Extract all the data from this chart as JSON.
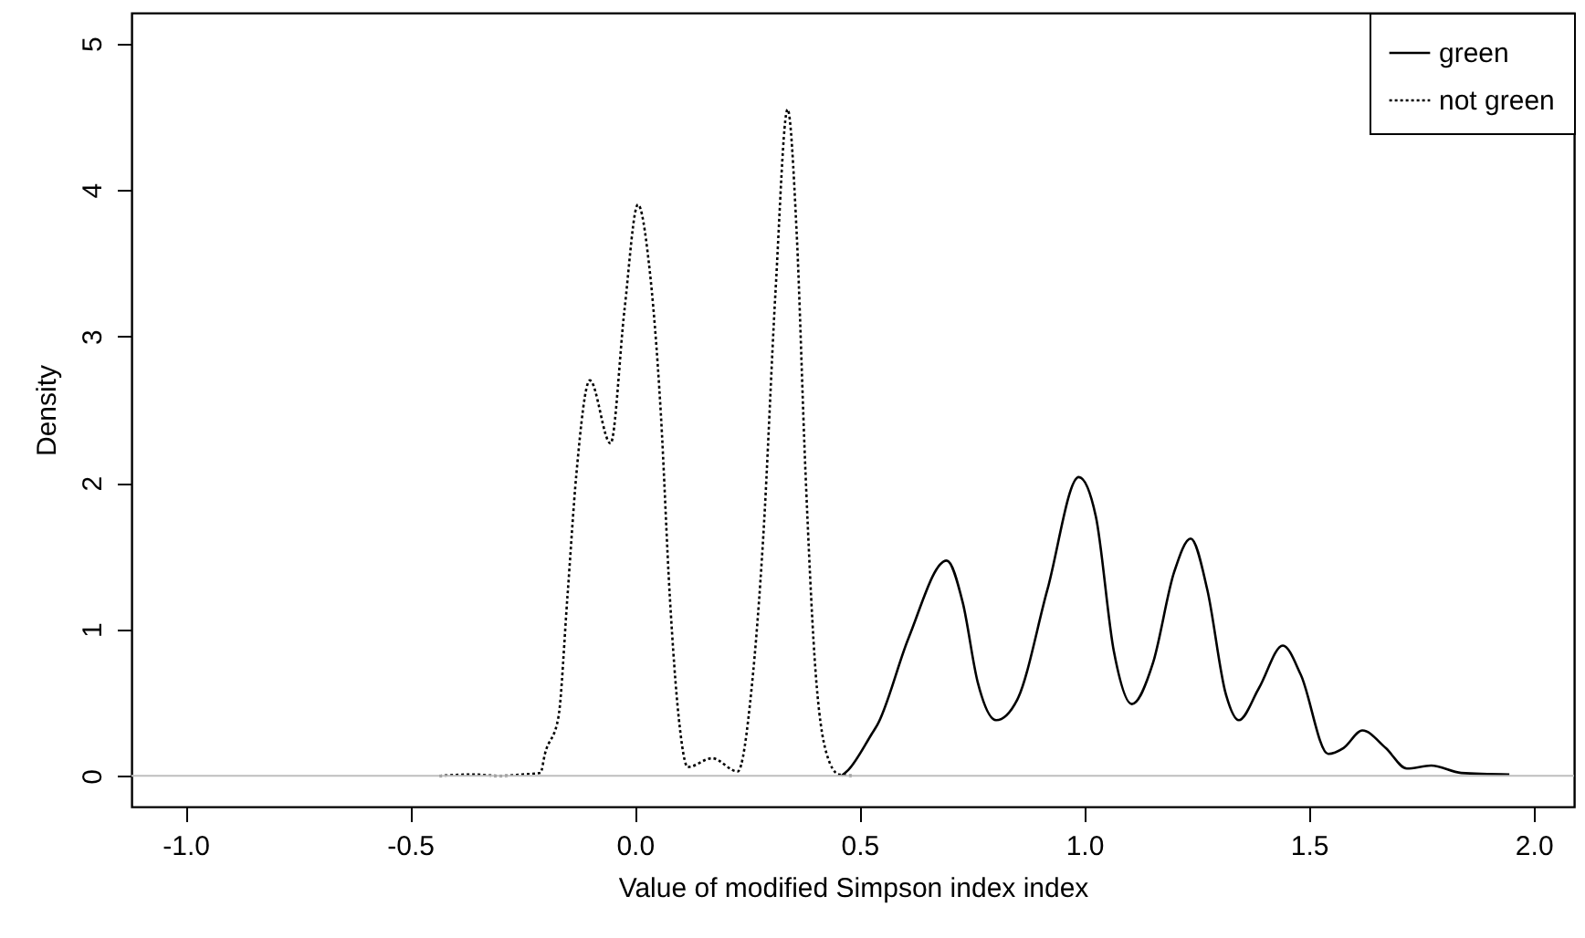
{
  "chart_data": {
    "type": "line",
    "xlabel": "Value of modified Simpson index index",
    "ylabel": "Density",
    "xlim": [
      -1.12,
      2.09
    ],
    "ylim": [
      -0.21,
      5.21
    ],
    "xticks": [
      {
        "value": -1,
        "label": "-1.0"
      },
      {
        "value": -0.5,
        "label": "-0.5"
      },
      {
        "value": 0,
        "label": "0.0"
      },
      {
        "value": 0.5,
        "label": "0.5"
      },
      {
        "value": 1,
        "label": "1.0"
      },
      {
        "value": 1.5,
        "label": "1.5"
      },
      {
        "value": 2,
        "label": "2.0"
      }
    ],
    "yticks": [
      0,
      1,
      2,
      3,
      4,
      5
    ],
    "grid": false,
    "legend": "top right",
    "marker": "none",
    "ref_lines": [
      {
        "axis": "y",
        "value": 0,
        "color": "#bebebe"
      }
    ],
    "series": [
      {
        "name": "green",
        "color": "#000000",
        "line_style": "solid",
        "x": [
          0.46,
          0.475,
          0.528,
          0.54,
          0.609,
          0.694,
          0.73,
          0.763,
          0.804,
          0.851,
          0.918,
          0.988,
          1.026,
          1.066,
          1.106,
          1.153,
          1.2,
          1.237,
          1.274,
          1.315,
          1.344,
          1.389,
          1.442,
          1.482,
          1.543,
          1.577,
          1.619,
          1.671,
          1.718,
          1.772,
          1.839,
          1.946
        ],
        "values": [
          0,
          0.04,
          0.29,
          0.35,
          0.94,
          1.47,
          1.18,
          0.64,
          0.38,
          0.52,
          1.27,
          2.04,
          1.77,
          0.85,
          0.49,
          0.77,
          1.39,
          1.62,
          1.27,
          0.56,
          0.38,
          0.6,
          0.89,
          0.69,
          0.15,
          0.19,
          0.31,
          0.19,
          0.05,
          0.07,
          0.02,
          0.01
        ]
      },
      {
        "name": "not green",
        "color": "#000000",
        "line_style": "dotted",
        "x": [
          -0.435,
          -0.36,
          -0.3,
          -0.25,
          -0.21,
          -0.2,
          -0.17,
          -0.15,
          -0.13,
          -0.1,
          -0.054,
          -0.023,
          0.007,
          0.031,
          0.058,
          0.078,
          0.098,
          0.118,
          0.172,
          0.229,
          0.26,
          0.286,
          0.313,
          0.34,
          0.36,
          0.38,
          0.4,
          0.427,
          0.454,
          0.488
        ],
        "values": [
          0,
          0.01,
          0,
          0.01,
          0.02,
          0.15,
          0.4,
          1.22,
          2.06,
          2.7,
          2.27,
          3.18,
          3.9,
          3.51,
          2.47,
          1.22,
          0.39,
          0.06,
          0.12,
          0.03,
          0.6,
          1.64,
          3.3,
          4.55,
          3.72,
          2.06,
          0.81,
          0.15,
          0.01,
          0
        ]
      }
    ]
  }
}
